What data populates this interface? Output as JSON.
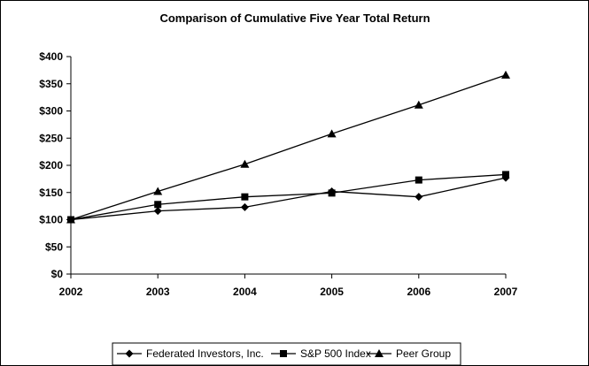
{
  "chart_data": {
    "type": "line",
    "title": "Comparison of Cumulative Five Year Total Return",
    "xlabel": "",
    "ylabel": "",
    "x": [
      "2002",
      "2003",
      "2004",
      "2005",
      "2006",
      "2007"
    ],
    "ylim": [
      0,
      400
    ],
    "yticks": [
      "$0",
      "$50",
      "$100",
      "$150",
      "$200",
      "$250",
      "$300",
      "$350",
      "$400"
    ],
    "grid": false,
    "legend_position": "bottom",
    "series": [
      {
        "name": "Federated Investors, Inc.",
        "marker": "diamond",
        "values": [
          100,
          116,
          123,
          152,
          142,
          177
        ]
      },
      {
        "name": "S&P 500 Index",
        "marker": "square",
        "values": [
          100,
          128,
          142,
          149,
          173,
          183
        ]
      },
      {
        "name": "Peer Group",
        "marker": "triangle",
        "values": [
          100,
          152,
          202,
          258,
          311,
          366
        ]
      }
    ]
  }
}
